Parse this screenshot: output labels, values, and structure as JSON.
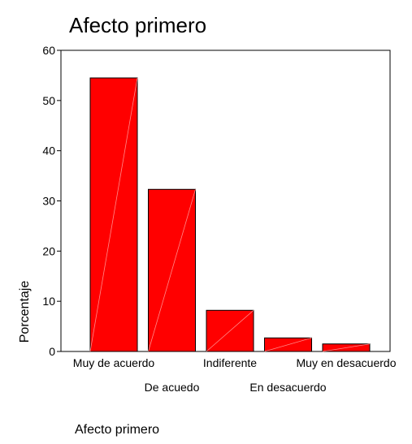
{
  "chart_data": {
    "type": "bar",
    "title": "Afecto primero",
    "xlabel": "Afecto primero",
    "ylabel": "Porcentaje",
    "categories": [
      "Muy de acuerdo",
      "De acuedo",
      "Indiferente",
      "En desacuerdo",
      "Muy en desacuerdo"
    ],
    "values": [
      54.5,
      32.3,
      8.2,
      2.7,
      1.5
    ],
    "ylim": [
      0,
      60
    ],
    "yticks": [
      "0",
      "10",
      "20",
      "30",
      "40",
      "50",
      "60"
    ],
    "bar_color": "#ff0000",
    "grid": false,
    "legend": "none"
  }
}
